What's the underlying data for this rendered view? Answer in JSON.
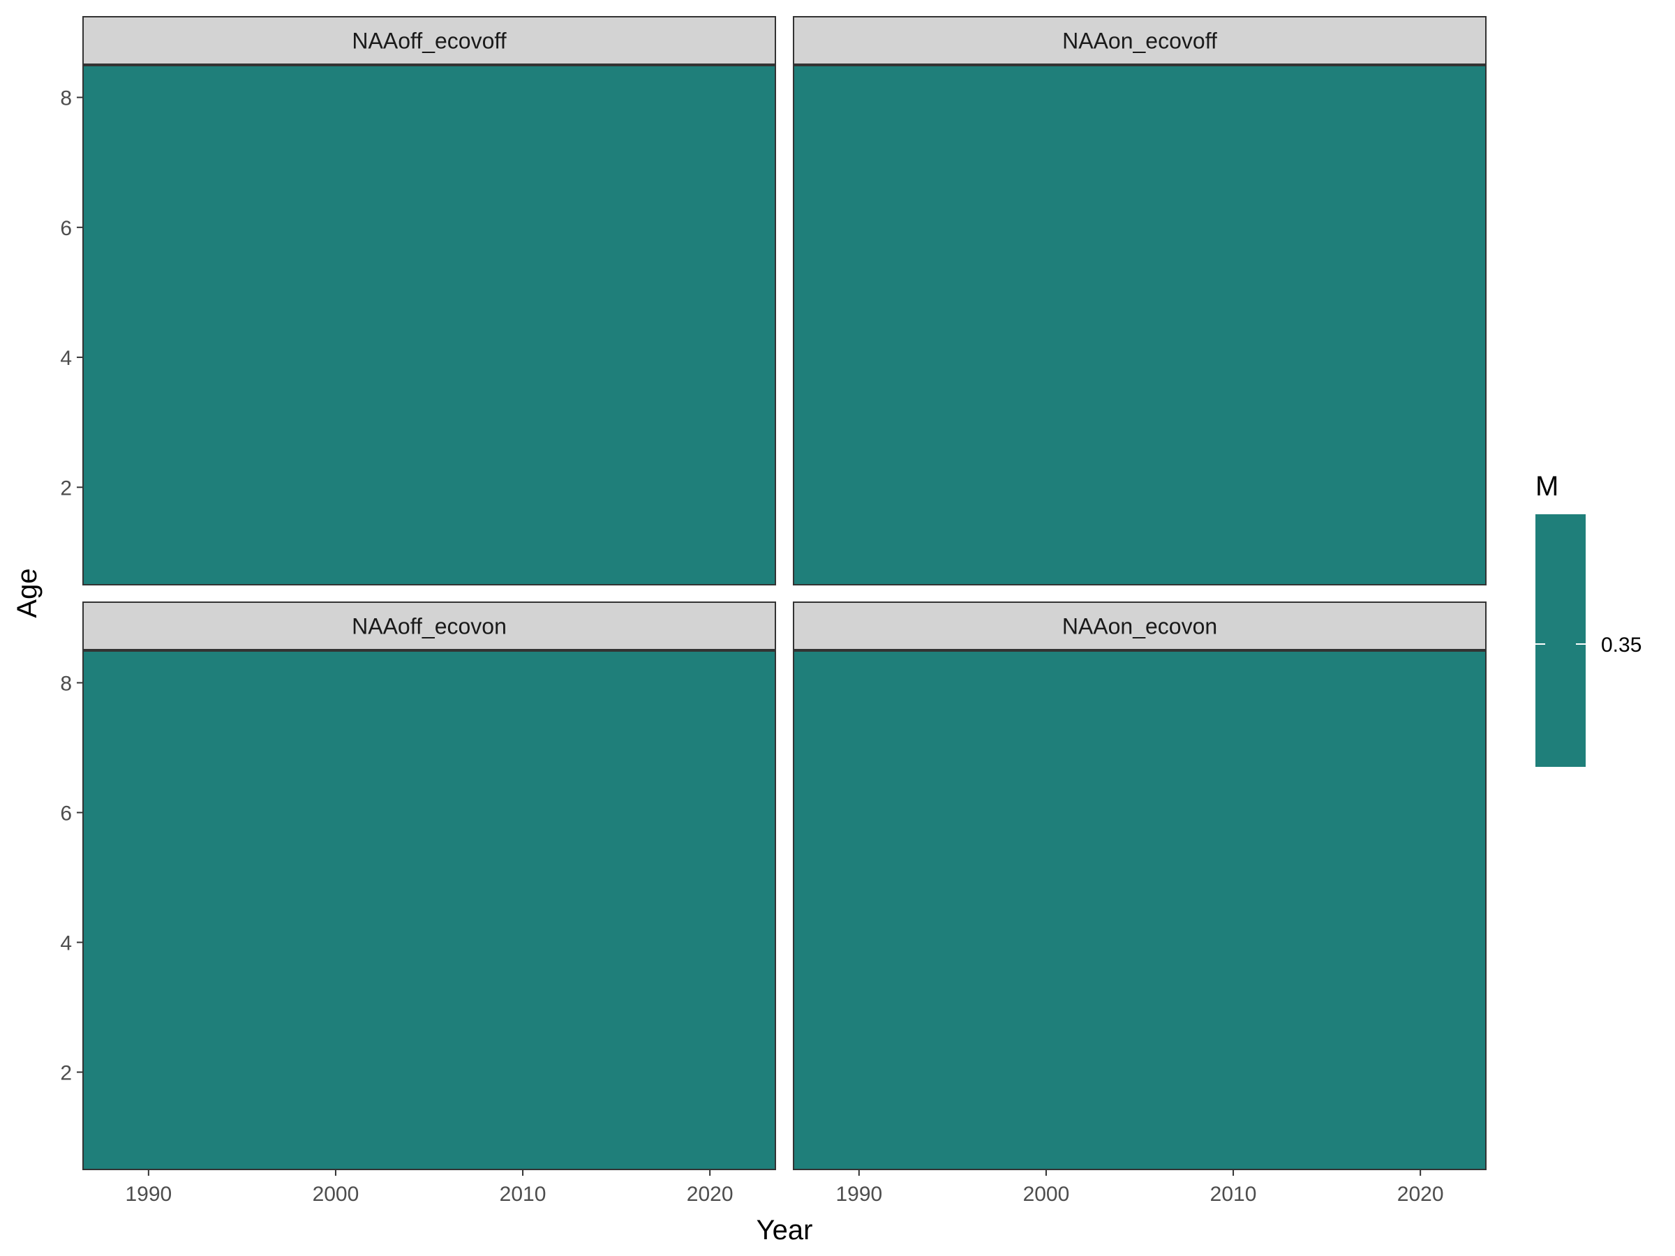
{
  "chart_data": {
    "type": "heatmap",
    "title": "",
    "xlabel": "Year",
    "ylabel": "Age",
    "xlim": [
      1986.5,
      2023.5
    ],
    "ylim": [
      0.5,
      8.5
    ],
    "x_ticks": [
      1990,
      2000,
      2010,
      2020
    ],
    "y_ticks": [
      2,
      4,
      6,
      8
    ],
    "grid": false,
    "facets": [
      {
        "label": "NAAoff_ecovoff",
        "value": 0.35
      },
      {
        "label": "NAAon_ecovoff",
        "value": 0.35
      },
      {
        "label": "NAAoff_ecovon",
        "value": 0.35
      },
      {
        "label": "NAAon_ecovon",
        "value": 0.35
      }
    ],
    "legend": {
      "title": "M",
      "placement": "right",
      "breaks": [
        0.35
      ],
      "break_labels": [
        "0.35"
      ]
    },
    "colors": {
      "fill": "#1f7f7a",
      "strip": "#d3d3d3",
      "border": "#333333"
    }
  }
}
